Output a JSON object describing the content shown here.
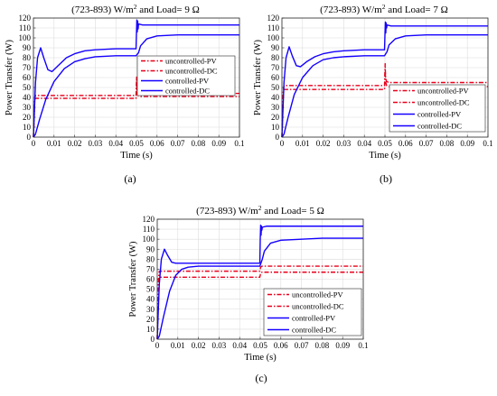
{
  "chart_data": [
    {
      "type": "line",
      "panel_label": "(a)",
      "title_parts": [
        "(723-893) W/m",
        "2",
        " and Load= 9 Ω"
      ],
      "xlabel": "Time (s)",
      "ylabel": "Power Transfer (W)",
      "xlim": [
        0,
        0.1
      ],
      "ylim": [
        0,
        120
      ],
      "xticks": [
        "0",
        "0.01",
        "0.02",
        "0.03",
        "0.04",
        "0.05",
        "0.06",
        "0.07",
        "0.08",
        "0.09",
        "0.1"
      ],
      "yticks": [
        "0",
        "10",
        "20",
        "30",
        "40",
        "50",
        "60",
        "70",
        "80",
        "90",
        "100",
        "110",
        "120"
      ],
      "grid": true,
      "legend_position": "right-middle",
      "series": [
        {
          "name": "uncontrolled-PV",
          "color": "#e8001c",
          "style": "dashdot",
          "points": [
            [
              0,
              0
            ],
            [
              0.0006,
              38
            ],
            [
              0.001,
              42
            ],
            [
              0.0498,
              42
            ],
            [
              0.0501,
              61
            ],
            [
              0.0503,
              47
            ],
            [
              0.0508,
              45
            ],
            [
              0.052,
              44
            ],
            [
              0.1,
              44
            ]
          ]
        },
        {
          "name": "uncontrolled-DC",
          "color": "#e8001c",
          "style": "dashdot",
          "points": [
            [
              0,
              0
            ],
            [
              0.0006,
              36
            ],
            [
              0.001,
              39
            ],
            [
              0.0498,
              39
            ],
            [
              0.0501,
              58
            ],
            [
              0.0503,
              44
            ],
            [
              0.0508,
              42
            ],
            [
              0.052,
              41
            ],
            [
              0.1,
              41
            ]
          ]
        },
        {
          "name": "controlled-PV",
          "color": "#1400ff",
          "style": "solid",
          "points": [
            [
              0,
              0
            ],
            [
              0.001,
              55
            ],
            [
              0.002,
              80
            ],
            [
              0.0035,
              90
            ],
            [
              0.005,
              80
            ],
            [
              0.007,
              68
            ],
            [
              0.009,
              66
            ],
            [
              0.012,
              72
            ],
            [
              0.016,
              80
            ],
            [
              0.02,
              84
            ],
            [
              0.025,
              87
            ],
            [
              0.03,
              88
            ],
            [
              0.04,
              89
            ],
            [
              0.0498,
              89
            ],
            [
              0.05,
              104
            ],
            [
              0.0502,
              118
            ],
            [
              0.0504,
              106
            ],
            [
              0.0506,
              117
            ],
            [
              0.0508,
              109
            ],
            [
              0.051,
              114
            ],
            [
              0.053,
              113
            ],
            [
              0.06,
              113
            ],
            [
              0.1,
              113
            ]
          ]
        },
        {
          "name": "controlled-DC",
          "color": "#1400ff",
          "style": "solid",
          "points": [
            [
              0,
              0
            ],
            [
              0.001,
              3
            ],
            [
              0.003,
              18
            ],
            [
              0.006,
              38
            ],
            [
              0.01,
              56
            ],
            [
              0.015,
              69
            ],
            [
              0.02,
              76
            ],
            [
              0.025,
              79
            ],
            [
              0.03,
              81
            ],
            [
              0.04,
              82
            ],
            [
              0.0498,
              82
            ],
            [
              0.051,
              85
            ],
            [
              0.052,
              92
            ],
            [
              0.055,
              99
            ],
            [
              0.06,
              102
            ],
            [
              0.07,
              103
            ],
            [
              0.08,
              103
            ],
            [
              0.1,
              103
            ]
          ]
        }
      ]
    },
    {
      "type": "line",
      "panel_label": "(b)",
      "title_parts": [
        "(723-893) W/m",
        "2",
        " and Load= 7 Ω"
      ],
      "xlabel": "Time (s)",
      "ylabel": "Power Transfer (W)",
      "xlim": [
        0,
        0.1
      ],
      "ylim": [
        0,
        120
      ],
      "xticks": [
        "0",
        "0.01",
        "0.02",
        "0.03",
        "0.04",
        "0.05",
        "0.06",
        "0.07",
        "0.08",
        "0.09",
        "0.1"
      ],
      "yticks": [
        "0",
        "10",
        "20",
        "30",
        "40",
        "50",
        "60",
        "70",
        "80",
        "90",
        "100",
        "110",
        "120"
      ],
      "grid": true,
      "legend_position": "bottom-right",
      "series": [
        {
          "name": "uncontrolled-PV",
          "color": "#e8001c",
          "style": "dashdot",
          "points": [
            [
              0,
              0
            ],
            [
              0.0006,
              45
            ],
            [
              0.001,
              52
            ],
            [
              0.0498,
              52
            ],
            [
              0.0501,
              74
            ],
            [
              0.0503,
              60
            ],
            [
              0.0508,
              56
            ],
            [
              0.052,
              55
            ],
            [
              0.1,
              55
            ]
          ]
        },
        {
          "name": "uncontrolled-DC",
          "color": "#e8001c",
          "style": "dashdot",
          "points": [
            [
              0,
              0
            ],
            [
              0.0006,
              42
            ],
            [
              0.001,
              48
            ],
            [
              0.0498,
              48
            ],
            [
              0.0501,
              68
            ],
            [
              0.0503,
              56
            ],
            [
              0.0508,
              52
            ],
            [
              0.052,
              51
            ],
            [
              0.1,
              51
            ]
          ]
        },
        {
          "name": "controlled-PV",
          "color": "#1400ff",
          "style": "solid",
          "points": [
            [
              0,
              0
            ],
            [
              0.001,
              55
            ],
            [
              0.002,
              80
            ],
            [
              0.0035,
              91
            ],
            [
              0.005,
              82
            ],
            [
              0.007,
              72
            ],
            [
              0.009,
              71
            ],
            [
              0.012,
              76
            ],
            [
              0.016,
              81
            ],
            [
              0.02,
              84
            ],
            [
              0.025,
              86
            ],
            [
              0.03,
              87
            ],
            [
              0.04,
              88
            ],
            [
              0.0498,
              88
            ],
            [
              0.05,
              103
            ],
            [
              0.0502,
              116
            ],
            [
              0.0504,
              105
            ],
            [
              0.0506,
              115
            ],
            [
              0.0508,
              110
            ],
            [
              0.051,
              113
            ],
            [
              0.053,
              112
            ],
            [
              0.06,
              112
            ],
            [
              0.1,
              112
            ]
          ]
        },
        {
          "name": "controlled-DC",
          "color": "#1400ff",
          "style": "solid",
          "points": [
            [
              0,
              0
            ],
            [
              0.001,
              3
            ],
            [
              0.003,
              20
            ],
            [
              0.006,
              43
            ],
            [
              0.01,
              60
            ],
            [
              0.015,
              72
            ],
            [
              0.02,
              78
            ],
            [
              0.025,
              80
            ],
            [
              0.03,
              81
            ],
            [
              0.04,
              82
            ],
            [
              0.0498,
              82
            ],
            [
              0.051,
              86
            ],
            [
              0.052,
              93
            ],
            [
              0.055,
              99
            ],
            [
              0.06,
              102
            ],
            [
              0.07,
              103
            ],
            [
              0.08,
              103
            ],
            [
              0.1,
              103
            ]
          ]
        }
      ]
    },
    {
      "type": "line",
      "panel_label": "(c)",
      "title_parts": [
        "(723-893) W/m",
        "2",
        " and Load= 5 Ω"
      ],
      "xlabel": "Time (s)",
      "ylabel": "Power Transfer (W)",
      "xlim": [
        0,
        0.1
      ],
      "ylim": [
        0,
        120
      ],
      "xticks": [
        "0",
        "0.01",
        "0.02",
        "0.03",
        "0.04",
        "0.05",
        "0.06",
        "0.07",
        "0.08",
        "0.09",
        "0.1"
      ],
      "yticks": [
        "0",
        "10",
        "20",
        "30",
        "40",
        "50",
        "60",
        "70",
        "80",
        "90",
        "100",
        "110",
        "120"
      ],
      "grid": true,
      "legend_position": "bottom-right",
      "series": [
        {
          "name": "uncontrolled-PV",
          "color": "#e8001c",
          "style": "dashdot",
          "points": [
            [
              0,
              0
            ],
            [
              0.0006,
              60
            ],
            [
              0.001,
              68
            ],
            [
              0.0498,
              68
            ],
            [
              0.0502,
              72
            ],
            [
              0.0508,
              73
            ],
            [
              0.1,
              73
            ]
          ]
        },
        {
          "name": "uncontrolled-DC",
          "color": "#e8001c",
          "style": "dashdot",
          "points": [
            [
              0,
              0
            ],
            [
              0.0006,
              55
            ],
            [
              0.001,
              62
            ],
            [
              0.0498,
              62
            ],
            [
              0.0502,
              66
            ],
            [
              0.0508,
              67
            ],
            [
              0.1,
              67
            ]
          ]
        },
        {
          "name": "controlled-PV",
          "color": "#1400ff",
          "style": "solid",
          "points": [
            [
              0,
              0
            ],
            [
              0.001,
              55
            ],
            [
              0.002,
              80
            ],
            [
              0.0035,
              90
            ],
            [
              0.005,
              84
            ],
            [
              0.007,
              77
            ],
            [
              0.009,
              76
            ],
            [
              0.012,
              76
            ],
            [
              0.02,
              76
            ],
            [
              0.03,
              76
            ],
            [
              0.04,
              76
            ],
            [
              0.0498,
              76
            ],
            [
              0.05,
              100
            ],
            [
              0.0502,
              114
            ],
            [
              0.0504,
              104
            ],
            [
              0.0506,
              113
            ],
            [
              0.0508,
              109
            ],
            [
              0.051,
              112
            ],
            [
              0.053,
              113
            ],
            [
              0.06,
              113
            ],
            [
              0.1,
              113
            ]
          ]
        },
        {
          "name": "controlled-DC",
          "color": "#1400ff",
          "style": "solid",
          "points": [
            [
              0,
              0
            ],
            [
              0.001,
              3
            ],
            [
              0.003,
              22
            ],
            [
              0.006,
              48
            ],
            [
              0.009,
              64
            ],
            [
              0.012,
              70
            ],
            [
              0.015,
              72
            ],
            [
              0.02,
              73
            ],
            [
              0.03,
              73
            ],
            [
              0.04,
              73
            ],
            [
              0.0498,
              73
            ],
            [
              0.051,
              80
            ],
            [
              0.052,
              88
            ],
            [
              0.055,
              96
            ],
            [
              0.06,
              99
            ],
            [
              0.07,
              100
            ],
            [
              0.08,
              101
            ],
            [
              0.1,
              101
            ]
          ]
        }
      ]
    }
  ]
}
